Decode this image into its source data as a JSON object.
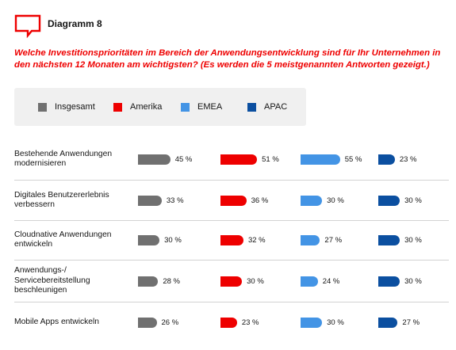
{
  "header": {
    "title": "Diagramm 8",
    "icon": "speech-bubble-icon",
    "accent": "#ee0000"
  },
  "question": "Welche Investitionsprioritäten im Bereich der Anwendungsentwicklung sind für Ihr Unternehmen in den nächsten 12 Monaten am wichtigsten? (Es werden die 5 meistgenannten Antworten gezeigt.)",
  "chart_data": {
    "type": "bar",
    "orientation": "horizontal",
    "grid": false,
    "legend_placement": "top",
    "value_suffix": " %",
    "categories": [
      [
        "Bestehende Anwendungen",
        "modernisieren"
      ],
      [
        "Digitales Benutzererlebnis",
        "verbessern"
      ],
      [
        "Cloudnative Anwendungen",
        "entwickeln"
      ],
      [
        "Anwendungs-/",
        "Servicebereitstellung",
        "beschleunigen"
      ],
      [
        "Mobile Apps entwickeln"
      ]
    ],
    "series": [
      {
        "name": "Insgesamt",
        "color": "#707070",
        "values": [
          45,
          33,
          30,
          28,
          26
        ]
      },
      {
        "name": "Amerika",
        "color": "#ee0000",
        "values": [
          51,
          36,
          32,
          30,
          23
        ]
      },
      {
        "name": "EMEA",
        "color": "#4394e5",
        "values": [
          55,
          30,
          27,
          24,
          30
        ]
      },
      {
        "name": "APAC",
        "color": "#0b4fa0",
        "values": [
          23,
          30,
          30,
          30,
          27
        ]
      }
    ]
  }
}
